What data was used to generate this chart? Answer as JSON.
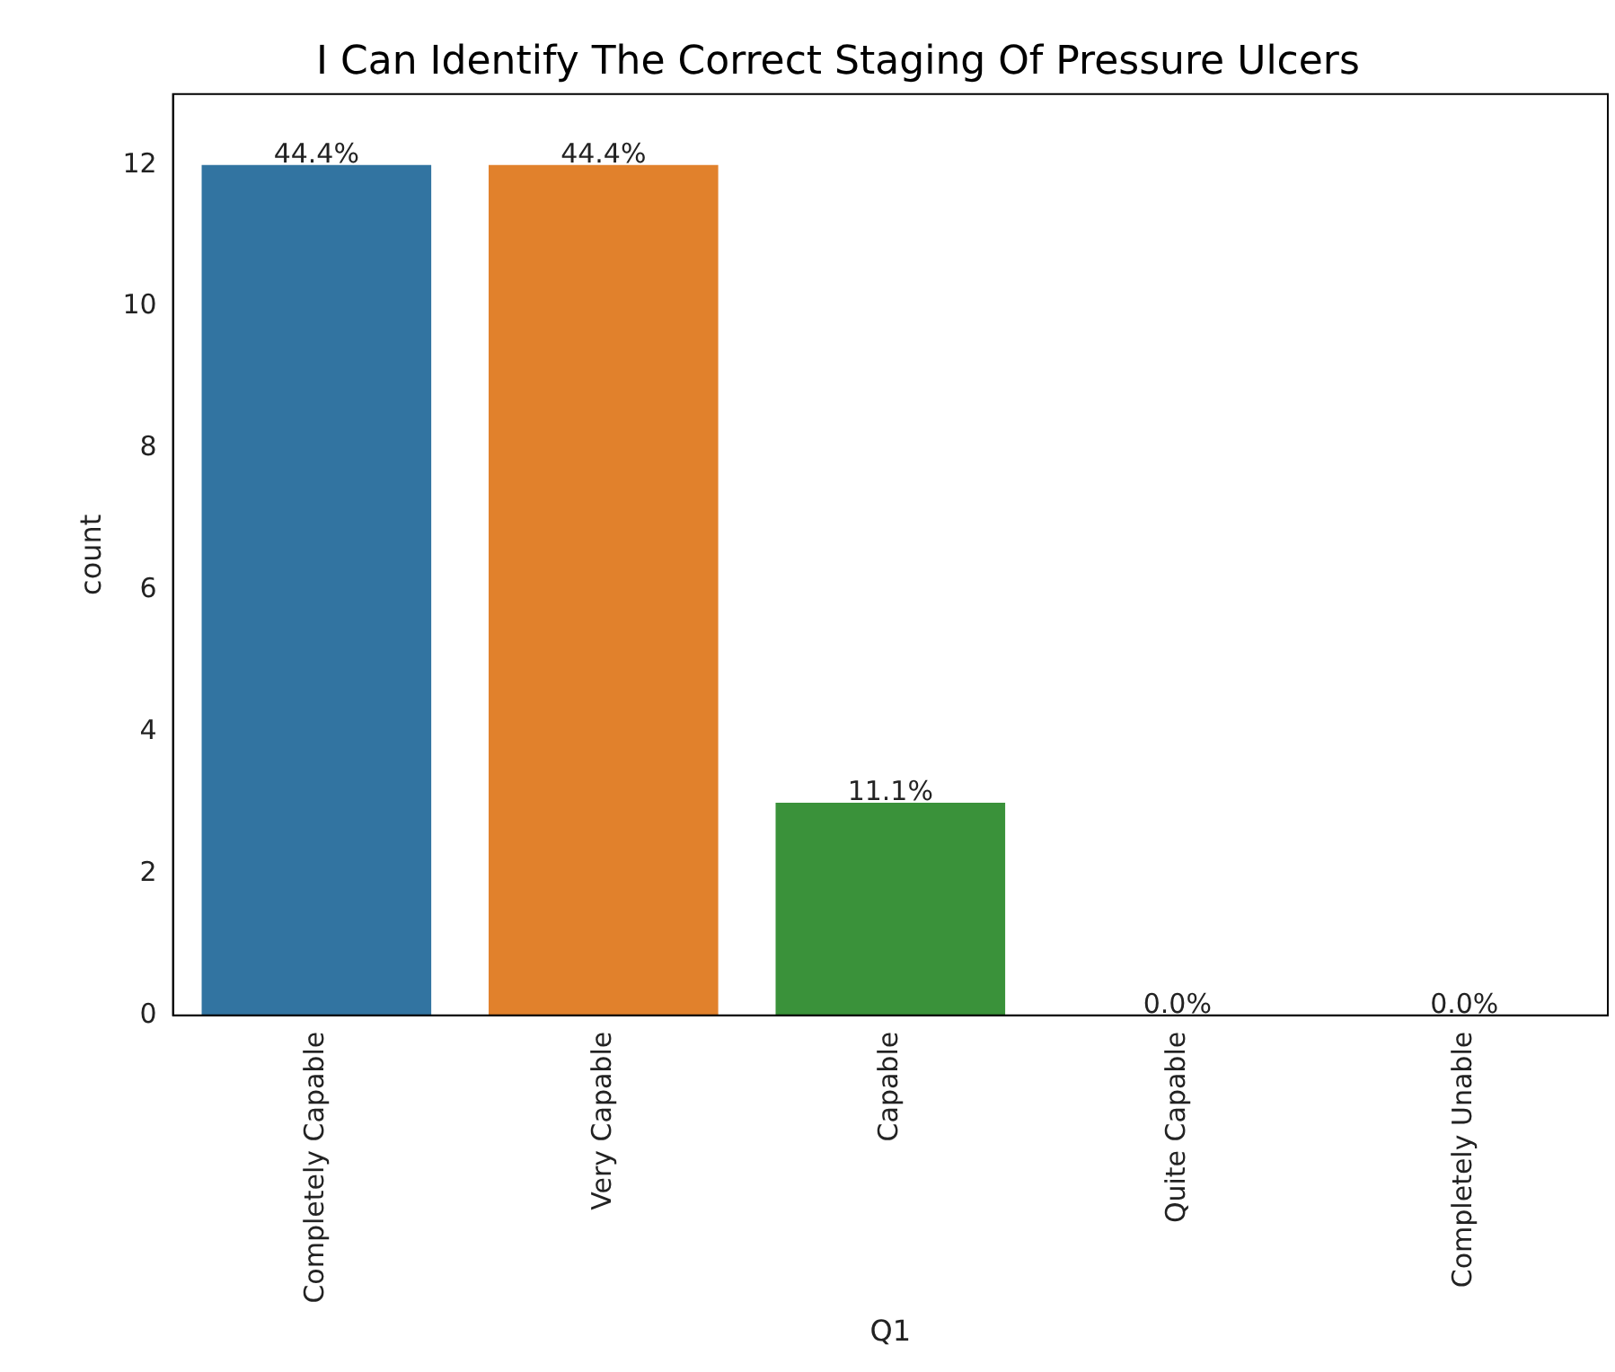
{
  "chart_data": {
    "type": "bar",
    "title": "I Can Identify The Correct Staging Of Pressure Ulcers",
    "xlabel": "Q1",
    "ylabel": "count",
    "categories": [
      "Completely Capable",
      "Very Capable",
      "Capable",
      "Quite Capable",
      "Completely Unable"
    ],
    "values": [
      12,
      12,
      3,
      0,
      0
    ],
    "colors": [
      "#3274a1",
      "#e1812c",
      "#3a923a",
      "#c03d3e",
      "#9372b2"
    ],
    "annotations": [
      {
        "text": "44.4%",
        "x": "Completely Capable",
        "y": 12
      },
      {
        "text": "44.4%",
        "x": "Very Capable",
        "y": 12
      },
      {
        "text": "11.1%",
        "x": "Capable",
        "y": 3
      },
      {
        "text": "0.0%",
        "x": "Quite Capable",
        "y": 0
      },
      {
        "text": "0.0%",
        "x": "Completely Unable",
        "y": 0
      }
    ],
    "ylim": [
      0,
      13
    ],
    "yticks": [
      0,
      2,
      4,
      6,
      8,
      10,
      12
    ],
    "grid": false,
    "legend": false
  }
}
